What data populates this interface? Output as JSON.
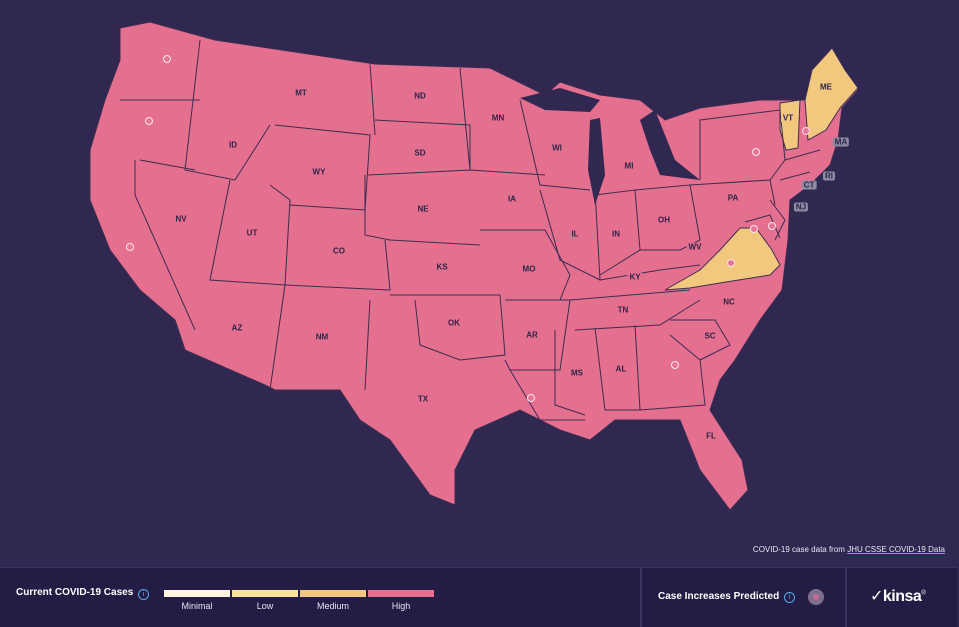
{
  "colors": {
    "background": "#302850",
    "footer": "#231c44",
    "minimal": "#fff6e0",
    "low": "#fbe29b",
    "medium": "#f2c77e",
    "high": "#e56f8f",
    "state_border": "#3b2d52"
  },
  "map": {
    "states": [
      {
        "abbr": "WA",
        "level": "High",
        "predicted": true,
        "labeled": false
      },
      {
        "abbr": "OR",
        "level": "High",
        "predicted": true,
        "labeled": false
      },
      {
        "abbr": "CA",
        "level": "High",
        "predicted": true,
        "labeled": false
      },
      {
        "abbr": "ID",
        "level": "High",
        "predicted": false,
        "labeled": true
      },
      {
        "abbr": "NV",
        "level": "High",
        "predicted": false,
        "labeled": true
      },
      {
        "abbr": "MT",
        "level": "High",
        "predicted": false,
        "labeled": true
      },
      {
        "abbr": "WY",
        "level": "High",
        "predicted": false,
        "labeled": true
      },
      {
        "abbr": "UT",
        "level": "High",
        "predicted": false,
        "labeled": true
      },
      {
        "abbr": "AZ",
        "level": "High",
        "predicted": false,
        "labeled": true
      },
      {
        "abbr": "CO",
        "level": "High",
        "predicted": false,
        "labeled": true
      },
      {
        "abbr": "NM",
        "level": "High",
        "predicted": false,
        "labeled": true
      },
      {
        "abbr": "ND",
        "level": "High",
        "predicted": false,
        "labeled": true
      },
      {
        "abbr": "SD",
        "level": "High",
        "predicted": false,
        "labeled": true
      },
      {
        "abbr": "NE",
        "level": "High",
        "predicted": false,
        "labeled": true
      },
      {
        "abbr": "KS",
        "level": "High",
        "predicted": false,
        "labeled": true
      },
      {
        "abbr": "OK",
        "level": "High",
        "predicted": false,
        "labeled": true
      },
      {
        "abbr": "TX",
        "level": "High",
        "predicted": false,
        "labeled": true
      },
      {
        "abbr": "MN",
        "level": "High",
        "predicted": false,
        "labeled": true
      },
      {
        "abbr": "IA",
        "level": "High",
        "predicted": false,
        "labeled": true
      },
      {
        "abbr": "MO",
        "level": "High",
        "predicted": false,
        "labeled": true
      },
      {
        "abbr": "AR",
        "level": "High",
        "predicted": false,
        "labeled": true
      },
      {
        "abbr": "LA",
        "level": "High",
        "predicted": true,
        "labeled": false
      },
      {
        "abbr": "WI",
        "level": "High",
        "predicted": false,
        "labeled": true
      },
      {
        "abbr": "IL",
        "level": "High",
        "predicted": false,
        "labeled": true
      },
      {
        "abbr": "MI",
        "level": "High",
        "predicted": false,
        "labeled": true
      },
      {
        "abbr": "IN",
        "level": "High",
        "predicted": false,
        "labeled": true
      },
      {
        "abbr": "OH",
        "level": "High",
        "predicted": false,
        "labeled": true
      },
      {
        "abbr": "KY",
        "level": "High",
        "predicted": false,
        "labeled": true
      },
      {
        "abbr": "TN",
        "level": "High",
        "predicted": false,
        "labeled": true
      },
      {
        "abbr": "MS",
        "level": "High",
        "predicted": false,
        "labeled": true
      },
      {
        "abbr": "AL",
        "level": "High",
        "predicted": false,
        "labeled": true
      },
      {
        "abbr": "GA",
        "level": "High",
        "predicted": true,
        "labeled": false
      },
      {
        "abbr": "FL",
        "level": "High",
        "predicted": false,
        "labeled": true
      },
      {
        "abbr": "SC",
        "level": "High",
        "predicted": false,
        "labeled": true
      },
      {
        "abbr": "NC",
        "level": "High",
        "predicted": false,
        "labeled": true
      },
      {
        "abbr": "VA",
        "level": "Medium",
        "predicted": true,
        "labeled": false
      },
      {
        "abbr": "WV",
        "level": "High",
        "predicted": false,
        "labeled": true
      },
      {
        "abbr": "PA",
        "level": "High",
        "predicted": false,
        "labeled": true
      },
      {
        "abbr": "NY",
        "level": "High",
        "predicted": true,
        "labeled": false
      },
      {
        "abbr": "VT",
        "level": "Medium",
        "predicted": false,
        "labeled": true
      },
      {
        "abbr": "NH",
        "level": "High",
        "predicted": true,
        "labeled": false
      },
      {
        "abbr": "ME",
        "level": "Medium",
        "predicted": false,
        "labeled": true
      },
      {
        "abbr": "MA",
        "level": "High",
        "predicted": false,
        "labeled": true
      },
      {
        "abbr": "RI",
        "level": "High",
        "predicted": false,
        "labeled": true
      },
      {
        "abbr": "CT",
        "level": "High",
        "predicted": false,
        "labeled": true
      },
      {
        "abbr": "NJ",
        "level": "High",
        "predicted": false,
        "labeled": true
      },
      {
        "abbr": "DE",
        "level": "High",
        "predicted": true,
        "labeled": false
      },
      {
        "abbr": "MD",
        "level": "High",
        "predicted": true,
        "labeled": false
      }
    ]
  },
  "attribution": {
    "prefix": "COVID-19 case data from ",
    "link_text": "JHU CSSE COVID-19 Data"
  },
  "footer": {
    "legend_title": "Current COVID-19 Cases",
    "legend_levels": [
      "Minimal",
      "Low",
      "Medium",
      "High"
    ],
    "predicted_title": "Case Increases Predicted",
    "info_icon": "info-icon",
    "brand": "kinsa",
    "brand_mark": "®"
  }
}
